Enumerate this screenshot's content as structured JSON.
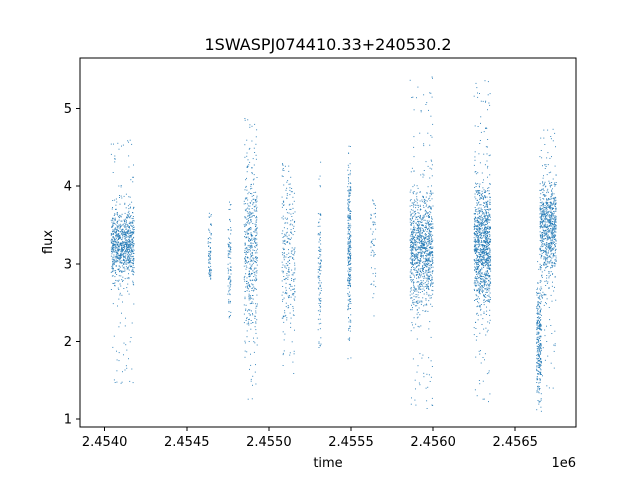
{
  "chart_data": {
    "type": "scatter",
    "title": "1SWASPJ074410.33+240530.2",
    "xlabel": "time",
    "ylabel": "flux",
    "x_offset_label": "1e6",
    "xlim": [
      2.45385,
      2.45687
    ],
    "ylim": [
      0.9,
      5.65
    ],
    "grid": false,
    "legend": "none",
    "x_ticks": [
      2.454,
      2.4545,
      2.455,
      2.4555,
      2.456,
      2.4565
    ],
    "x_tick_labels": [
      "2.4540",
      "2.4545",
      "2.4550",
      "2.4555",
      "2.4560",
      "2.4565"
    ],
    "y_ticks": [
      1,
      2,
      3,
      4,
      5
    ],
    "y_tick_labels": [
      "1",
      "2",
      "3",
      "4",
      "5"
    ],
    "marker_color": "#1f77b4",
    "series": [
      {
        "clusters": [
          {
            "x": [
              2.45404,
              2.45418
            ],
            "y_center": 3.25,
            "y_spread": 0.22,
            "y_min": 1.45,
            "y_max": 4.65,
            "weight": 1.0
          },
          {
            "x": [
              2.45463,
              2.45465
            ],
            "y_center": 3.1,
            "y_spread": 0.25,
            "y_min": 2.8,
            "y_max": 3.7,
            "weight": 0.08
          },
          {
            "x": [
              2.45475,
              2.45477
            ],
            "y_center": 3.0,
            "y_spread": 0.4,
            "y_min": 2.25,
            "y_max": 3.8,
            "weight": 0.1
          },
          {
            "x": [
              2.45485,
              2.45493
            ],
            "y_center": 3.2,
            "y_spread": 0.6,
            "y_min": 1.2,
            "y_max": 4.95,
            "weight": 0.55
          },
          {
            "x": [
              2.45508,
              2.45516
            ],
            "y_center": 3.1,
            "y_spread": 0.6,
            "y_min": 1.5,
            "y_max": 4.3,
            "weight": 0.3
          },
          {
            "x": [
              2.4553,
              2.45532
            ],
            "y_center": 3.0,
            "y_spread": 0.6,
            "y_min": 1.9,
            "y_max": 4.35,
            "weight": 0.12
          },
          {
            "x": [
              2.45548,
              2.4555
            ],
            "y_center": 3.2,
            "y_spread": 0.55,
            "y_min": 1.75,
            "y_max": 4.55,
            "weight": 0.3
          },
          {
            "x": [
              2.45562,
              2.45565
            ],
            "y_center": 3.3,
            "y_spread": 0.4,
            "y_min": 2.25,
            "y_max": 3.85,
            "weight": 0.06
          },
          {
            "x": [
              2.45586,
              2.456
            ],
            "y_center": 3.2,
            "y_spread": 0.38,
            "y_min": 1.1,
            "y_max": 5.5,
            "weight": 1.2
          },
          {
            "x": [
              2.45625,
              2.45635
            ],
            "y_center": 3.2,
            "y_spread": 0.4,
            "y_min": 1.15,
            "y_max": 5.45,
            "weight": 1.2
          },
          {
            "x": [
              2.45663,
              2.45666
            ],
            "y_center": 2.0,
            "y_spread": 0.35,
            "y_min": 1.1,
            "y_max": 3.2,
            "weight": 0.3
          },
          {
            "x": [
              2.45665,
              2.45675
            ],
            "y_center": 3.45,
            "y_spread": 0.3,
            "y_min": 1.4,
            "y_max": 4.75,
            "weight": 0.9
          }
        ]
      }
    ]
  }
}
